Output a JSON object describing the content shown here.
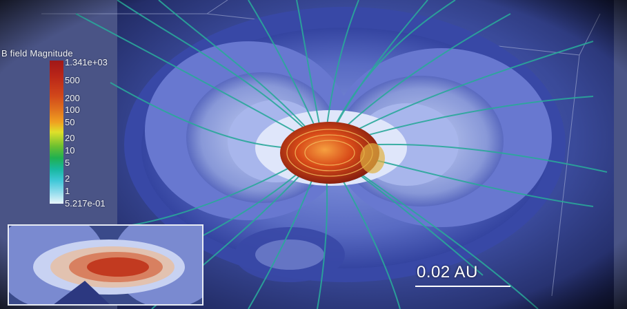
{
  "legend": {
    "title": "B field Magnitude",
    "ticks": [
      "1.341e+03",
      "500",
      "200",
      "100",
      "50",
      "20",
      "10",
      "5",
      "2",
      "1",
      "5.217e-01"
    ]
  },
  "scale": {
    "label": "0.02 AU"
  },
  "colors": {
    "background": "#2b3a7a",
    "field_lines": "#2aa89a",
    "core": "#d9501a",
    "vignette": "#000000"
  }
}
